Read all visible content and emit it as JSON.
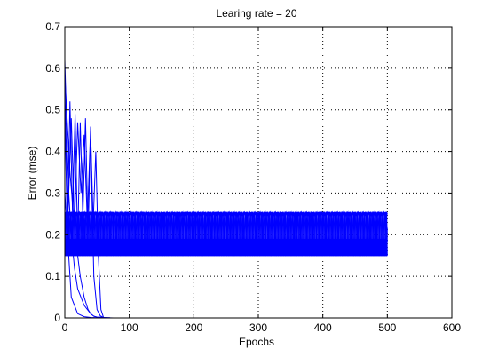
{
  "chart_data": {
    "type": "line",
    "title": "Learing rate = 20",
    "xlabel": "Epochs",
    "ylabel": "Error (mse)",
    "xlim": [
      0,
      600
    ],
    "ylim": [
      0,
      0.7
    ],
    "xticks": [
      0,
      100,
      200,
      300,
      400,
      500,
      600
    ],
    "yticks": [
      0,
      0.1,
      0.2,
      0.3,
      0.4,
      0.5,
      0.6,
      0.7
    ],
    "grid": true,
    "line_color": "#0000ff",
    "series": [
      {
        "x": [
          0,
          3,
          6,
          10,
          15,
          20,
          30,
          40,
          45,
          50,
          60,
          70
        ],
        "y": [
          0.62,
          0.45,
          0.3,
          0.2,
          0.12,
          0.07,
          0.03,
          0.01,
          0.004,
          0.002,
          0.001,
          0.0005
        ]
      },
      {
        "x": [
          0,
          5,
          10,
          15,
          20,
          25,
          30,
          35,
          40,
          42,
          45,
          50,
          55,
          60
        ],
        "y": [
          0.55,
          0.25,
          0.48,
          0.22,
          0.47,
          0.3,
          0.44,
          0.23,
          0.46,
          0.3,
          0.1,
          0.02,
          0.005,
          0.001
        ]
      },
      {
        "x": [
          0,
          4,
          8,
          12,
          16,
          20,
          24,
          28,
          32,
          36,
          40,
          44,
          48,
          52,
          56,
          60
        ],
        "y": [
          0.5,
          0.2,
          0.52,
          0.25,
          0.49,
          0.18,
          0.47,
          0.24,
          0.48,
          0.2,
          0.44,
          0.23,
          0.4,
          0.15,
          0.02,
          0.001
        ]
      },
      {
        "x": [
          0,
          10,
          20,
          30,
          40,
          50,
          60,
          70,
          80,
          90,
          100
        ],
        "y": [
          0.3,
          0.05,
          0.01,
          0.003,
          0.001,
          0.0005,
          0.0003,
          0.0002,
          0.0001,
          0.0001,
          0.0001
        ]
      },
      {
        "x": [
          0,
          8,
          16,
          24,
          30,
          36,
          40,
          45,
          50,
          60
        ],
        "y": [
          0.58,
          0.35,
          0.2,
          0.1,
          0.05,
          0.02,
          0.01,
          0.004,
          0.002,
          0.001
        ]
      },
      {
        "x": [
          0,
          500
        ],
        "y": [
          0.17,
          0.17
        ]
      },
      {
        "x": [
          0,
          500
        ],
        "y": [
          0.155,
          0.155
        ]
      },
      {
        "x": [
          0,
          500
        ],
        "y": [
          0.185,
          0.185
        ]
      },
      {
        "x": [
          0,
          500
        ],
        "y": [
          0.165,
          0.165
        ]
      },
      {
        "x": [
          0,
          500
        ],
        "y": [
          0.175,
          0.175
        ]
      },
      {
        "x": [
          0,
          500
        ],
        "y": [
          0.16,
          0.16
        ]
      },
      {
        "x": [
          0,
          500
        ],
        "y": [
          0.18,
          0.18
        ]
      },
      {
        "x": [
          0,
          500
        ],
        "y": [
          0.15,
          0.15
        ]
      },
      {
        "x": [
          0,
          500
        ],
        "y": [
          0.0,
          0.0
        ]
      }
    ],
    "oscillating_series": {
      "x_range": [
        0,
        500
      ],
      "low": 0.15,
      "high": 0.25,
      "count": 5,
      "period": 8
    }
  }
}
